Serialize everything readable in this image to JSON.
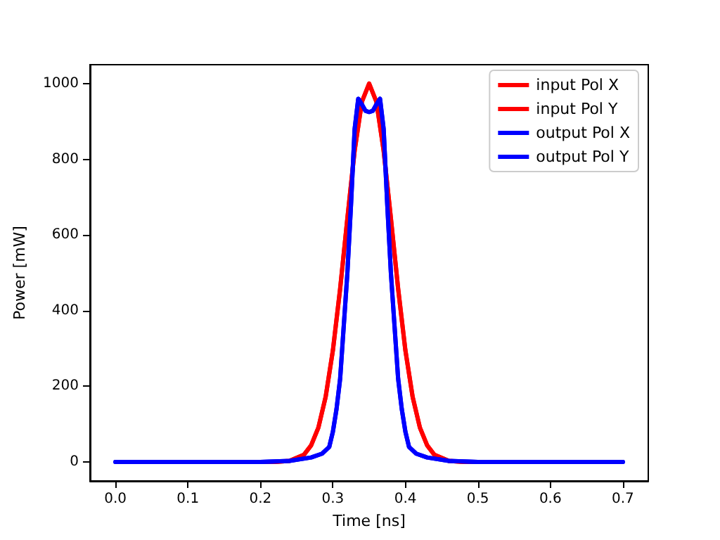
{
  "chart_data": {
    "type": "line",
    "xlabel": "Time [ns]",
    "ylabel": "Power [mW]",
    "xlim": [
      -0.035,
      0.735
    ],
    "ylim": [
      -50,
      1050
    ],
    "xticks": [
      {
        "value": 0,
        "label": "0.0"
      },
      0.1,
      0.2,
      0.3,
      0.4,
      0.5,
      0.6,
      0.7
    ],
    "yticks": [
      0,
      200,
      400,
      600,
      800,
      1000
    ],
    "grid": false,
    "legend": "top right",
    "marker": "none",
    "line_style": "solid",
    "series": [
      {
        "name": "input Pol X",
        "color": "#ff0000",
        "x": [
          0.2,
          0.22,
          0.24,
          0.26,
          0.27,
          0.28,
          0.29,
          0.3,
          0.31,
          0.32,
          0.33,
          0.34,
          0.35,
          0.36,
          0.37,
          0.38,
          0.39,
          0.4,
          0.41,
          0.42,
          0.43,
          0.44,
          0.46,
          0.48,
          0.5
        ],
        "values": [
          0,
          0,
          3,
          19,
          44,
          91,
          172,
          295,
          458,
          644,
          823,
          952,
          1000,
          952,
          823,
          644,
          458,
          295,
          172,
          91,
          44,
          19,
          3,
          0,
          0
        ]
      },
      {
        "name": "input Pol Y",
        "color": "#ff0000",
        "x": [
          0.2,
          0.22,
          0.24,
          0.26,
          0.27,
          0.28,
          0.29,
          0.3,
          0.31,
          0.32,
          0.33,
          0.34,
          0.35,
          0.36,
          0.37,
          0.38,
          0.39,
          0.4,
          0.41,
          0.42,
          0.43,
          0.44,
          0.46,
          0.48,
          0.5
        ],
        "values": [
          0,
          0,
          3,
          19,
          44,
          91,
          172,
          295,
          458,
          644,
          823,
          952,
          1000,
          952,
          823,
          644,
          458,
          295,
          172,
          91,
          44,
          19,
          3,
          0,
          0
        ]
      },
      {
        "name": "output Pol X",
        "color": "#0000ff",
        "x": [
          0,
          0.1,
          0.2,
          0.24,
          0.27,
          0.285,
          0.295,
          0.3,
          0.305,
          0.31,
          0.315,
          0.32,
          0.325,
          0.33,
          0.335,
          0.34,
          0.345,
          0.35,
          0.355,
          0.36,
          0.365,
          0.37,
          0.375,
          0.38,
          0.385,
          0.39,
          0.395,
          0.4,
          0.405,
          0.415,
          0.43,
          0.46,
          0.5,
          0.6,
          0.7
        ],
        "values": [
          0,
          0,
          0,
          3,
          12,
          22,
          40,
          80,
          140,
          220,
          360,
          500,
          680,
          880,
          960,
          945,
          928,
          925,
          928,
          945,
          960,
          880,
          680,
          500,
          360,
          220,
          140,
          80,
          40,
          22,
          12,
          3,
          0,
          0,
          0
        ]
      },
      {
        "name": "output Pol Y",
        "color": "#0000ff",
        "x": [
          0,
          0.1,
          0.2,
          0.24,
          0.27,
          0.285,
          0.295,
          0.3,
          0.305,
          0.31,
          0.315,
          0.32,
          0.325,
          0.33,
          0.335,
          0.34,
          0.345,
          0.35,
          0.355,
          0.36,
          0.365,
          0.37,
          0.375,
          0.38,
          0.385,
          0.39,
          0.395,
          0.4,
          0.405,
          0.415,
          0.43,
          0.46,
          0.5,
          0.6,
          0.7
        ],
        "values": [
          0,
          0,
          0,
          3,
          12,
          22,
          40,
          80,
          140,
          220,
          360,
          500,
          680,
          880,
          960,
          945,
          928,
          925,
          928,
          945,
          960,
          880,
          680,
          500,
          360,
          220,
          140,
          80,
          40,
          22,
          12,
          3,
          0,
          0,
          0
        ]
      }
    ]
  }
}
